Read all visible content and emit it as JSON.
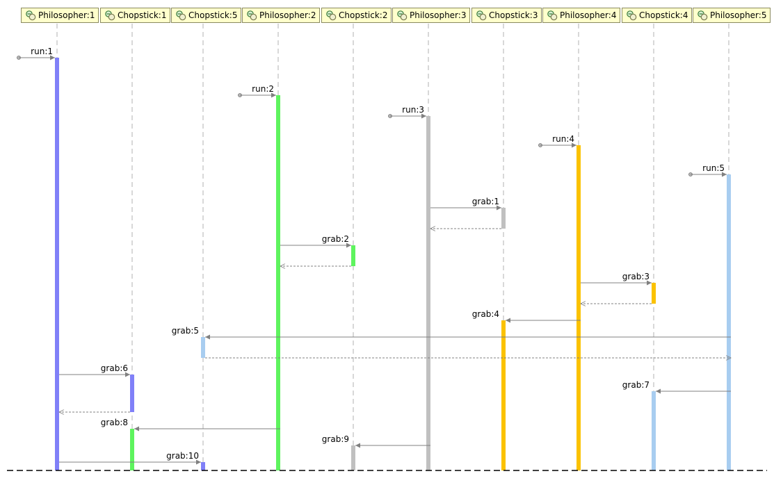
{
  "lifelines": [
    {
      "id": "Philosopher:1",
      "label": "Philosopher:1",
      "icon": "object-icon"
    },
    {
      "id": "Chopstick:1",
      "label": "Chopstick:1",
      "icon": "object-icon"
    },
    {
      "id": "Chopstick:5",
      "label": "Chopstick:5",
      "icon": "object-icon"
    },
    {
      "id": "Philosopher:2",
      "label": "Philosopher:2",
      "icon": "object-icon"
    },
    {
      "id": "Chopstick:2",
      "label": "Chopstick:2",
      "icon": "object-icon"
    },
    {
      "id": "Philosopher:3",
      "label": "Philosopher:3",
      "icon": "object-icon"
    },
    {
      "id": "Chopstick:3",
      "label": "Chopstick:3",
      "icon": "object-icon"
    },
    {
      "id": "Philosopher:4",
      "label": "Philosopher:4",
      "icon": "object-icon"
    },
    {
      "id": "Chopstick:4",
      "label": "Chopstick:4",
      "icon": "object-icon"
    },
    {
      "id": "Philosopher:5",
      "label": "Philosopher:5",
      "icon": "object-icon"
    }
  ],
  "messages": [
    {
      "label": "run:1",
      "from": null,
      "to": "Philosopher:1",
      "return": false
    },
    {
      "label": "run:2",
      "from": null,
      "to": "Philosopher:2",
      "return": false
    },
    {
      "label": "run:3",
      "from": null,
      "to": "Philosopher:3",
      "return": false
    },
    {
      "label": "run:4",
      "from": null,
      "to": "Philosopher:4",
      "return": false
    },
    {
      "label": "run:5",
      "from": null,
      "to": "Philosopher:5",
      "return": false
    },
    {
      "label": "grab:1",
      "from": "Philosopher:3",
      "to": "Chopstick:3",
      "return": true
    },
    {
      "label": "grab:2",
      "from": "Philosopher:2",
      "to": "Chopstick:2",
      "return": true
    },
    {
      "label": "grab:3",
      "from": "Philosopher:4",
      "to": "Chopstick:4",
      "return": true
    },
    {
      "label": "grab:4",
      "from": "Philosopher:4",
      "to": "Chopstick:3",
      "return": false
    },
    {
      "label": "grab:5",
      "from": "Philosopher:5",
      "to": "Chopstick:5",
      "return": true
    },
    {
      "label": "grab:6",
      "from": "Philosopher:1",
      "to": "Chopstick:1",
      "return": true
    },
    {
      "label": "grab:7",
      "from": "Philosopher:5",
      "to": "Chopstick:4",
      "return": false
    },
    {
      "label": "grab:8",
      "from": "Philosopher:2",
      "to": "Chopstick:1",
      "return": false
    },
    {
      "label": "grab:9",
      "from": "Philosopher:3",
      "to": "Chopstick:2",
      "return": false
    },
    {
      "label": "grab:10",
      "from": "Philosopher:1",
      "to": "Chopstick:5",
      "return": false
    }
  ],
  "colors": {
    "philosopher_1": "#8080f8",
    "philosopher_2": "#5ef45e",
    "philosopher_3": "#c0c0c0",
    "philosopher_4": "#fbc200",
    "philosopher_5": "#a8cdf0",
    "lifeline": "#b0b0b0",
    "arrow": "#808080",
    "header_fill": "#ffffcc"
  }
}
